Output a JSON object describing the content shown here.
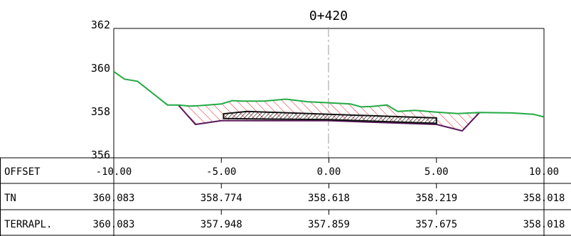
{
  "chart_data": {
    "type": "cross-section",
    "title": "0+420",
    "x_range": [
      -10.0,
      10.0
    ],
    "y_range": [
      356,
      362
    ],
    "y_ticks": [
      "362",
      "360",
      "358",
      "356"
    ],
    "colors": {
      "terrain": "#22aa44",
      "design": "#5a1a5a",
      "hatch": "#dd2222",
      "pavement": "#111111",
      "axis_dash": "#999999"
    },
    "terrain_line": [
      {
        "x": -10.0,
        "y": 360.0
      },
      {
        "x": -9.5,
        "y": 359.65
      },
      {
        "x": -8.9,
        "y": 359.55
      },
      {
        "x": -7.5,
        "y": 358.45
      },
      {
        "x": -7.0,
        "y": 358.45
      },
      {
        "x": -6.5,
        "y": 358.4
      },
      {
        "x": -6.0,
        "y": 358.42
      },
      {
        "x": -5.0,
        "y": 358.5
      },
      {
        "x": -4.5,
        "y": 358.65
      },
      {
        "x": -4.0,
        "y": 358.63
      },
      {
        "x": -3.0,
        "y": 358.63
      },
      {
        "x": -2.0,
        "y": 358.72
      },
      {
        "x": -1.0,
        "y": 358.6
      },
      {
        "x": 0.0,
        "y": 358.55
      },
      {
        "x": 1.0,
        "y": 358.5
      },
      {
        "x": 1.5,
        "y": 358.36
      },
      {
        "x": 2.0,
        "y": 358.38
      },
      {
        "x": 2.7,
        "y": 358.45
      },
      {
        "x": 3.2,
        "y": 358.15
      },
      {
        "x": 4.0,
        "y": 358.2
      },
      {
        "x": 5.0,
        "y": 358.12
      },
      {
        "x": 6.0,
        "y": 358.05
      },
      {
        "x": 7.0,
        "y": 358.1
      },
      {
        "x": 8.5,
        "y": 358.08
      },
      {
        "x": 9.5,
        "y": 358.02
      },
      {
        "x": 10.0,
        "y": 357.9
      }
    ],
    "design_line": [
      {
        "x": -7.0,
        "y": 358.45
      },
      {
        "x": -6.2,
        "y": 357.55
      },
      {
        "x": -5.0,
        "y": 357.72
      },
      {
        "x": 0.0,
        "y": 357.72
      },
      {
        "x": 5.0,
        "y": 357.55
      },
      {
        "x": 6.2,
        "y": 357.25
      },
      {
        "x": 7.0,
        "y": 358.1
      }
    ],
    "pavement": [
      {
        "x": -4.9,
        "y": 358.04
      },
      {
        "x": -3.8,
        "y": 358.15
      },
      {
        "x": 0.0,
        "y": 358.02
      },
      {
        "x": 3.5,
        "y": 357.9
      },
      {
        "x": 5.0,
        "y": 357.85
      },
      {
        "x": 5.0,
        "y": 357.6
      },
      {
        "x": 0.0,
        "y": 357.77
      },
      {
        "x": -4.9,
        "y": 357.82
      }
    ],
    "table": {
      "rows": [
        {
          "label": "OFFSET",
          "values": [
            "-10.00",
            "-5.00",
            "0.00",
            "5.00",
            "10.00"
          ]
        },
        {
          "label": "TN",
          "values": [
            "360.083",
            "358.774",
            "358.618",
            "358.219",
            "358.018"
          ]
        },
        {
          "label": "TERRAPL.",
          "values": [
            "360.083",
            "357.948",
            "357.859",
            "357.675",
            "358.018"
          ]
        }
      ],
      "stations": [
        -10.0,
        -5.0,
        0.0,
        5.0,
        10.0
      ]
    }
  }
}
